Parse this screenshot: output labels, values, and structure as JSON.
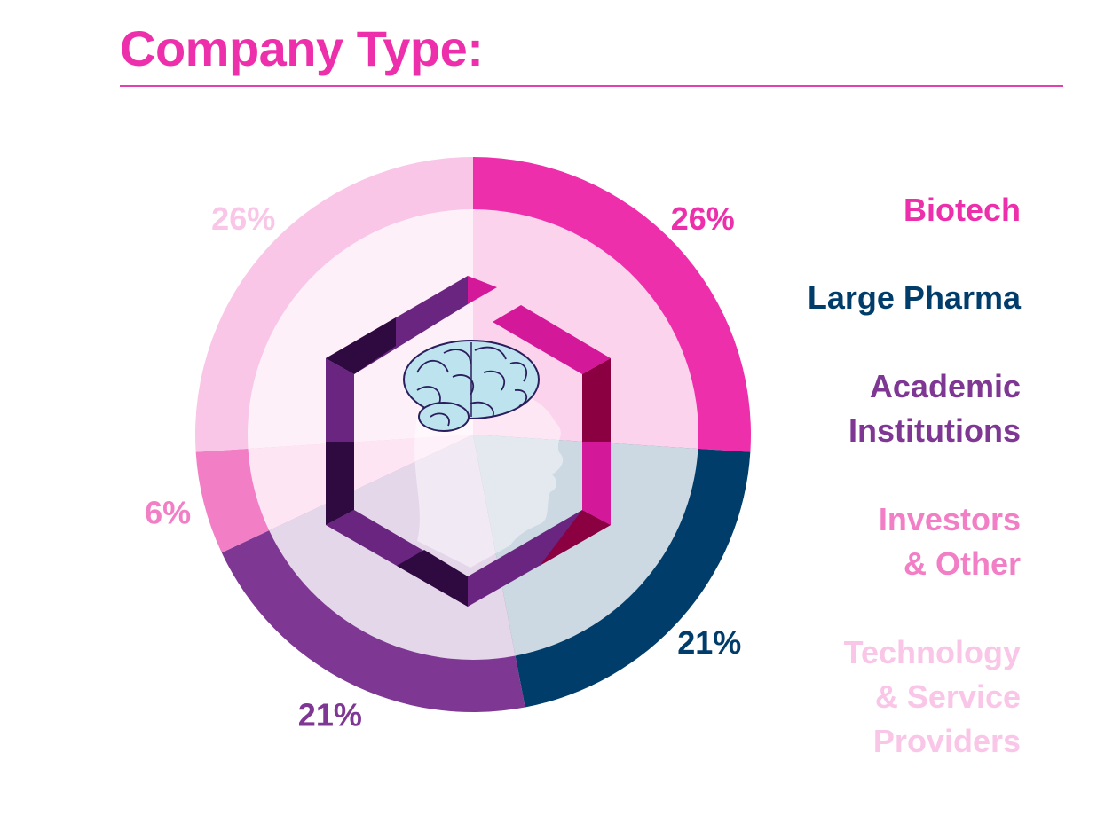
{
  "title": "Company Type:",
  "colors": {
    "title": "#ee2fab",
    "rule": "#e040b0",
    "hex_dark": "#2e0a40",
    "hex_mid": "#6a2580",
    "hex_light_pink": "#d4189a",
    "hex_dark_red": "#8a0040"
  },
  "chart_data": {
    "type": "pie",
    "start": "12 o'clock",
    "direction": "clockwise",
    "slices": [
      {
        "label": "Biotech",
        "value": 26,
        "value_label": "26%",
        "color": "#ee2fab",
        "inner_color": "#fbd3ec"
      },
      {
        "label": "Large Pharma",
        "value": 21,
        "value_label": "21%",
        "color": "#003d6b",
        "inner_color": "#ccd8e2"
      },
      {
        "label": "Academic Institutions",
        "value": 21,
        "value_label": "21%",
        "color": "#7f3794",
        "inner_color": "#e5d7ea"
      },
      {
        "label": "Investors & Other",
        "value": 6,
        "value_label": "6%",
        "color": "#f27ec6",
        "inner_color": "#fde5f4"
      },
      {
        "label": "Technology & Service Providers",
        "value": 26,
        "value_label": "26%",
        "color": "#f9c6e7",
        "inner_color": "#fdf0f8"
      }
    ],
    "legend_placement": "right"
  },
  "legend": [
    {
      "lines": [
        "Biotech"
      ]
    },
    {
      "lines": [
        "Large Pharma"
      ]
    },
    {
      "lines": [
        "Academic",
        "Institutions"
      ]
    },
    {
      "lines": [
        "Investors",
        "& Other"
      ]
    },
    {
      "lines": [
        "Technology",
        "& Service",
        "Providers"
      ]
    }
  ],
  "icons": {
    "center": "brain-head-icon"
  }
}
